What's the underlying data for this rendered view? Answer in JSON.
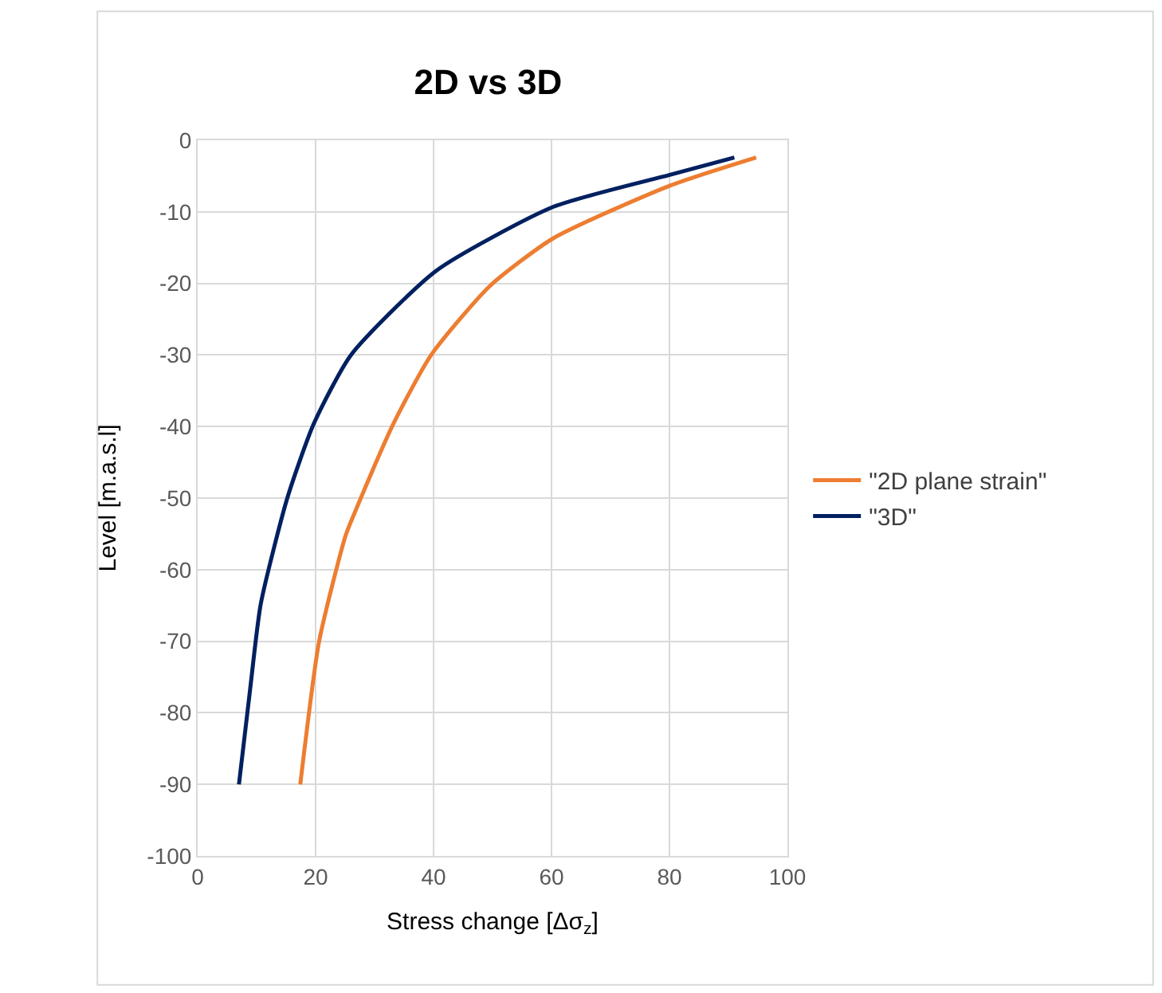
{
  "chart_data": {
    "type": "line",
    "title": "2D vs 3D",
    "xlabel": "Stress change [Δσ$_{z}$]",
    "ylabel": "Level [m.a.s.l]",
    "series": [
      {
        "name": "\"2D plane strain\"",
        "color": "#ed7d31",
        "x": [
          17.4,
          20.6,
          25.1,
          26.9,
          33.2,
          39.6,
          49.5,
          60.3,
          80.2,
          94.7
        ],
        "values": [
          -90,
          -70,
          -55.2,
          -51.5,
          -39.6,
          -30,
          -20.4,
          -13.7,
          -6.3,
          -2.4
        ]
      },
      {
        "name": "\"3D\"",
        "color": "#002060",
        "x": [
          7,
          8.9,
          10.7,
          15.2,
          19.7,
          26,
          40.5,
          60.3,
          80.2,
          91
        ],
        "values": [
          -90,
          -76.7,
          -64.8,
          -50,
          -39.6,
          -30,
          -18.2,
          -9.3,
          -4.8,
          -2.4
        ]
      }
    ],
    "xlim": [
      0,
      100
    ],
    "xticks": [
      0,
      20,
      40,
      60,
      80,
      100
    ],
    "ylim": [
      -100,
      0
    ],
    "yticks": [
      -100,
      -90,
      -80,
      -70,
      -60,
      -50,
      -40,
      -30,
      -20,
      -10,
      0
    ],
    "grid": true,
    "legend": "right",
    "marker": "none",
    "line_style": "solid"
  }
}
